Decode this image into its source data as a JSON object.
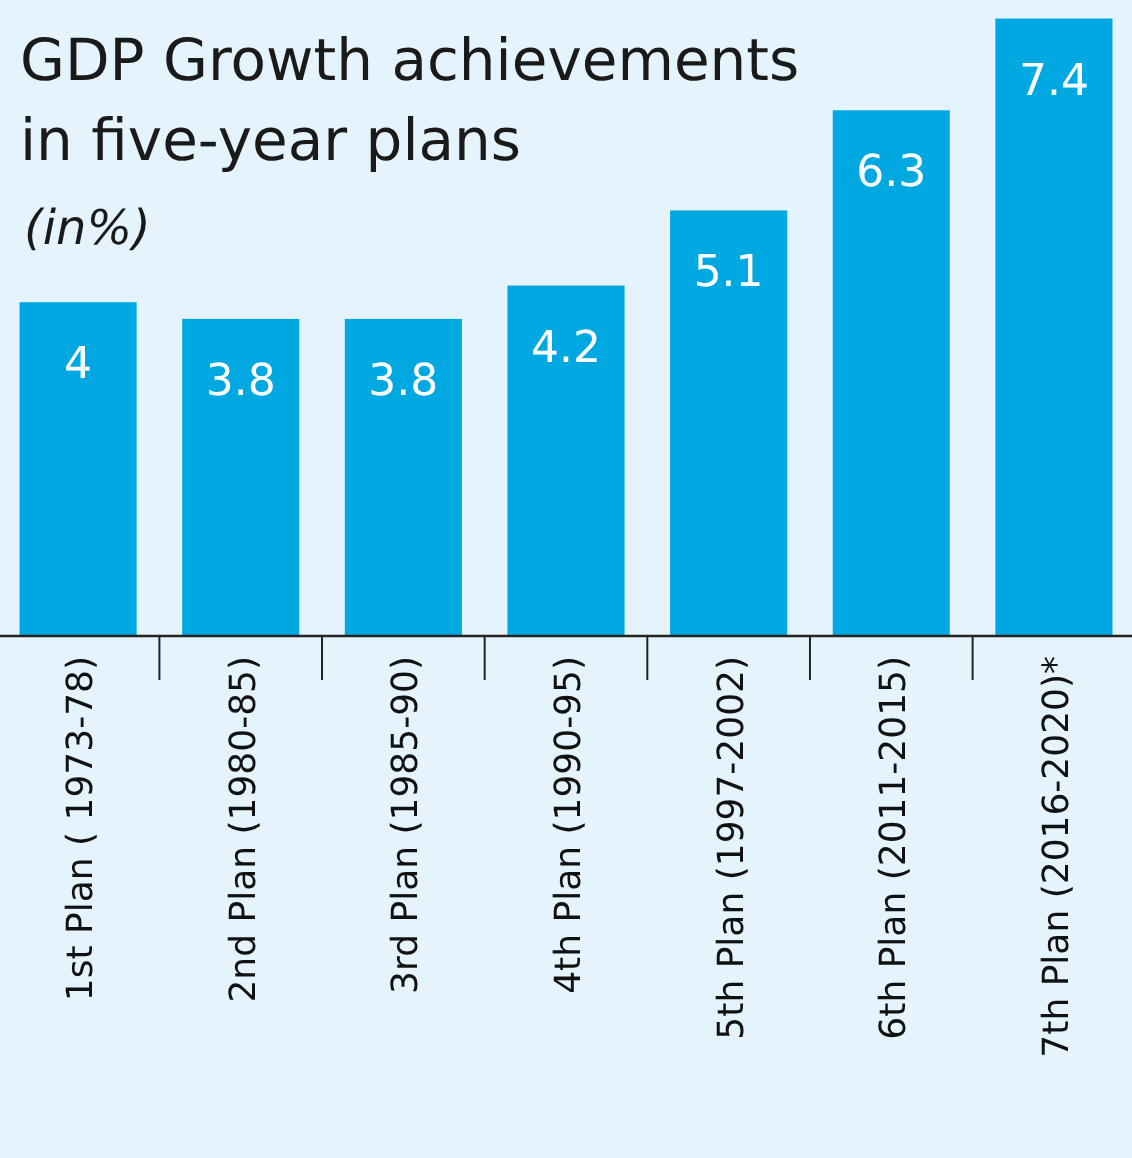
{
  "chart_data": {
    "type": "bar",
    "title": "GDP Growth achievements in five-year plans",
    "subtitle": "(in%)",
    "categories": [
      "1st Plan ( 1973-78)",
      "2nd Plan (1980-85)",
      "3rd Plan (1985-90)",
      "4th Plan (1990-95)",
      "5th Plan (1997-2002)",
      "6th Plan (2011-2015)",
      "7th Plan (2016-2020)*"
    ],
    "values": [
      4,
      3.8,
      3.8,
      4.2,
      5.1,
      6.3,
      7.4
    ],
    "color": "#00a8e1",
    "data_labels": true
  }
}
